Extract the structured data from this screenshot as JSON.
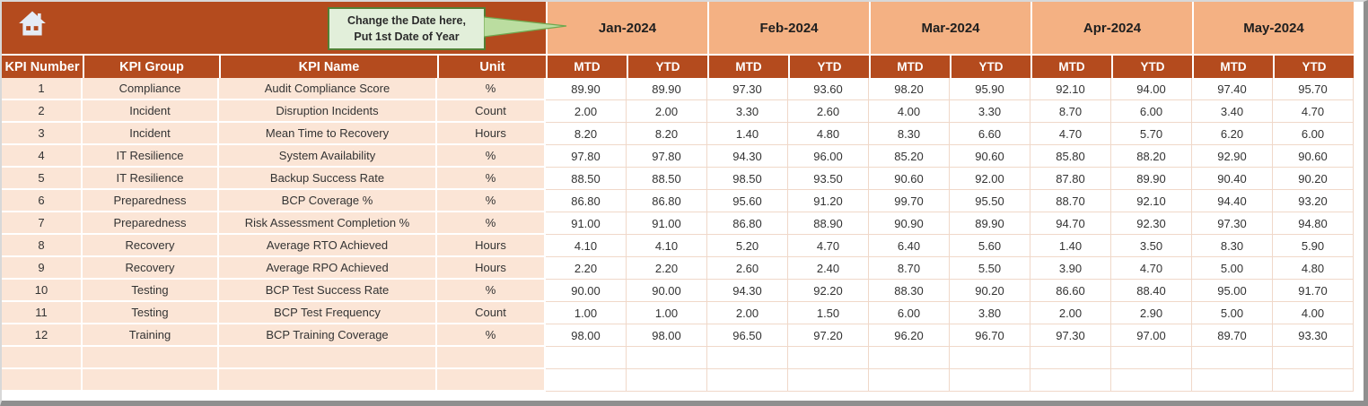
{
  "colors": {
    "header_orange": "#B44B1E",
    "month_peach": "#F4B183",
    "row_peach": "#FBE5D6",
    "callout_bg": "#E2EFDA",
    "callout_border": "#538135",
    "grid_line": "#F0D8C9",
    "frame_gray": "#8F8F8F"
  },
  "icons": {
    "home": "house"
  },
  "callout": {
    "line1": "Change the Date here,",
    "line2": "Put 1st Date of Year"
  },
  "table": {
    "left_headers": [
      "KPI Number",
      "KPI Group",
      "KPI Name",
      "Unit"
    ],
    "months": [
      "Jan-2024",
      "Feb-2024",
      "Mar-2024",
      "Apr-2024",
      "May-2024"
    ],
    "sub_headers": [
      "MTD",
      "YTD"
    ],
    "rows": [
      {
        "number": "1",
        "group": "Compliance",
        "name": "Audit Compliance Score",
        "unit": "%",
        "values": [
          "89.90",
          "89.90",
          "97.30",
          "93.60",
          "98.20",
          "95.90",
          "92.10",
          "94.00",
          "97.40",
          "95.70"
        ]
      },
      {
        "number": "2",
        "group": "Incident",
        "name": "Disruption Incidents",
        "unit": "Count",
        "values": [
          "2.00",
          "2.00",
          "3.30",
          "2.60",
          "4.00",
          "3.30",
          "8.70",
          "6.00",
          "3.40",
          "4.70"
        ]
      },
      {
        "number": "3",
        "group": "Incident",
        "name": "Mean Time to Recovery",
        "unit": "Hours",
        "values": [
          "8.20",
          "8.20",
          "1.40",
          "4.80",
          "8.30",
          "6.60",
          "4.70",
          "5.70",
          "6.20",
          "6.00"
        ]
      },
      {
        "number": "4",
        "group": "IT Resilience",
        "name": "System Availability",
        "unit": "%",
        "values": [
          "97.80",
          "97.80",
          "94.30",
          "96.00",
          "85.20",
          "90.60",
          "85.80",
          "88.20",
          "92.90",
          "90.60"
        ]
      },
      {
        "number": "5",
        "group": "IT Resilience",
        "name": "Backup Success Rate",
        "unit": "%",
        "values": [
          "88.50",
          "88.50",
          "98.50",
          "93.50",
          "90.60",
          "92.00",
          "87.80",
          "89.90",
          "90.40",
          "90.20"
        ]
      },
      {
        "number": "6",
        "group": "Preparedness",
        "name": "BCP Coverage %",
        "unit": "%",
        "values": [
          "86.80",
          "86.80",
          "95.60",
          "91.20",
          "99.70",
          "95.50",
          "88.70",
          "92.10",
          "94.40",
          "93.20"
        ]
      },
      {
        "number": "7",
        "group": "Preparedness",
        "name": "Risk Assessment Completion %",
        "unit": "%",
        "values": [
          "91.00",
          "91.00",
          "86.80",
          "88.90",
          "90.90",
          "89.90",
          "94.70",
          "92.30",
          "97.30",
          "94.80"
        ]
      },
      {
        "number": "8",
        "group": "Recovery",
        "name": "Average RTO Achieved",
        "unit": "Hours",
        "values": [
          "4.10",
          "4.10",
          "5.20",
          "4.70",
          "6.40",
          "5.60",
          "1.40",
          "3.50",
          "8.30",
          "5.90"
        ]
      },
      {
        "number": "9",
        "group": "Recovery",
        "name": "Average RPO Achieved",
        "unit": "Hours",
        "values": [
          "2.20",
          "2.20",
          "2.60",
          "2.40",
          "8.70",
          "5.50",
          "3.90",
          "4.70",
          "5.00",
          "4.80"
        ]
      },
      {
        "number": "10",
        "group": "Testing",
        "name": "BCP Test Success Rate",
        "unit": "%",
        "values": [
          "90.00",
          "90.00",
          "94.30",
          "92.20",
          "88.30",
          "90.20",
          "86.60",
          "88.40",
          "95.00",
          "91.70"
        ]
      },
      {
        "number": "11",
        "group": "Testing",
        "name": "BCP Test Frequency",
        "unit": "Count",
        "values": [
          "1.00",
          "1.00",
          "2.00",
          "1.50",
          "6.00",
          "3.80",
          "2.00",
          "2.90",
          "5.00",
          "4.00"
        ]
      },
      {
        "number": "12",
        "group": "Training",
        "name": "BCP Training Coverage",
        "unit": "%",
        "values": [
          "98.00",
          "98.00",
          "96.50",
          "97.20",
          "96.20",
          "96.70",
          "97.30",
          "97.00",
          "89.70",
          "93.30"
        ]
      }
    ],
    "empty_row_count": 2
  }
}
